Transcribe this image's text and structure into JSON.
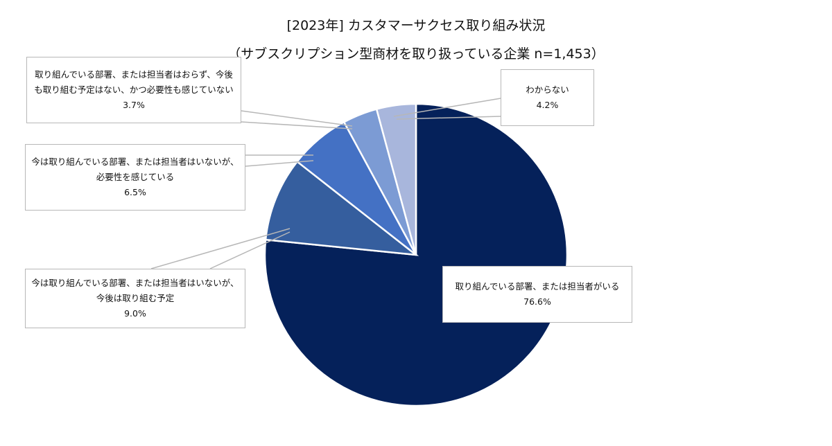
{
  "title": "[2023年] カスタマーサクセス取り組み状況",
  "subtitle": "（サブスクリプション型商材を取り扱っている企業 n=1,453）",
  "chart_data": {
    "type": "pie",
    "title": "[2023年] カスタマーサクセス取り組み状況",
    "subtitle": "（サブスクリプション型商材を取り扱っている企業 n=1,453）",
    "slices": [
      {
        "label_lines": [
          "取り組んでいる部署、または担当者がいる"
        ],
        "value": 76.6,
        "value_label": "76.6%",
        "color": "#05215a"
      },
      {
        "label_lines": [
          "今は取り組んでいる部署、または担当者はいないが、",
          "今後は取り組む予定"
        ],
        "value": 9.0,
        "value_label": "9.0%",
        "color": "#355e9e"
      },
      {
        "label_lines": [
          "今は取り組んでいる部署、または担当者はいないが、",
          "必要性を感じている"
        ],
        "value": 6.5,
        "value_label": "6.5%",
        "color": "#4471c4"
      },
      {
        "label_lines": [
          "取り組んでいる部署、または担当者はおらず、今後",
          "も取り組む予定はない、かつ必要性も感じていない"
        ],
        "value": 3.7,
        "value_label": "3.7%",
        "color": "#7c9bd4"
      },
      {
        "label_lines": [
          "わからない"
        ],
        "value": 4.2,
        "value_label": "4.2%",
        "color": "#a8b6dc"
      }
    ],
    "order": "clockwise from 12 o'clock"
  }
}
